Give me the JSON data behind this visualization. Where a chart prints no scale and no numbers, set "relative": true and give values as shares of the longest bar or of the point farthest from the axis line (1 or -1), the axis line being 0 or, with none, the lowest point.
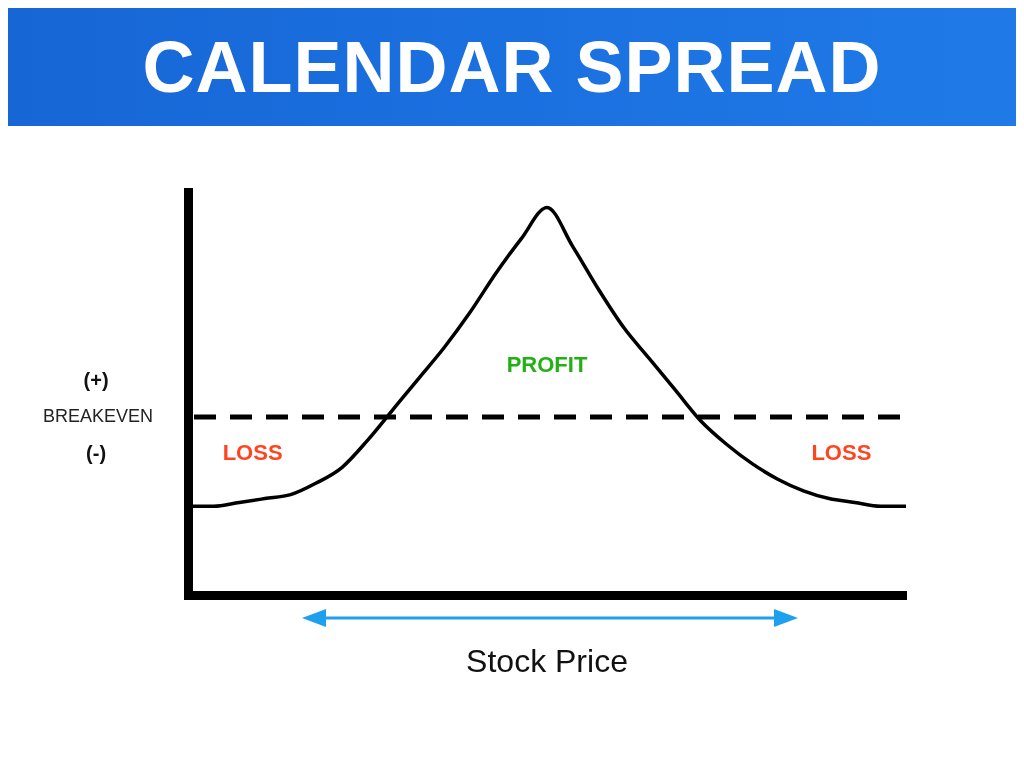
{
  "chart_data": {
    "type": "line",
    "title": "CALENDAR SPREAD",
    "xlabel": "Stock Price",
    "relative": true,
    "marker": "none",
    "categories": [
      null,
      null,
      null,
      null,
      null,
      null,
      null,
      null,
      null,
      null,
      null,
      null,
      null,
      null,
      null,
      null,
      null,
      null,
      null,
      null,
      null,
      null,
      null,
      null,
      null,
      null,
      null,
      null,
      null
    ],
    "series": [
      {
        "color": "#000000",
        "values": [
          0.23,
          0.23,
          0.24,
          0.25,
          0.26,
          0.29,
          0.33,
          0.4,
          0.48,
          0.56,
          0.64,
          0.73,
          0.83,
          0.92,
          1,
          0.9,
          0.79,
          0.69,
          0.61,
          0.53,
          0.45,
          0.39,
          0.34,
          0.3,
          0.27,
          0.25,
          0.24,
          0.23,
          0.23
        ]
      }
    ],
    "ref_lines": [
      {
        "axis": "y",
        "value": 0.46,
        "label": "BREAKEVEN",
        "color": "#000000",
        "line_style": "dashed"
      }
    ],
    "annotations": [
      "(+)",
      "(-)",
      "PROFIT",
      "LOSS",
      "LOSS"
    ]
  }
}
